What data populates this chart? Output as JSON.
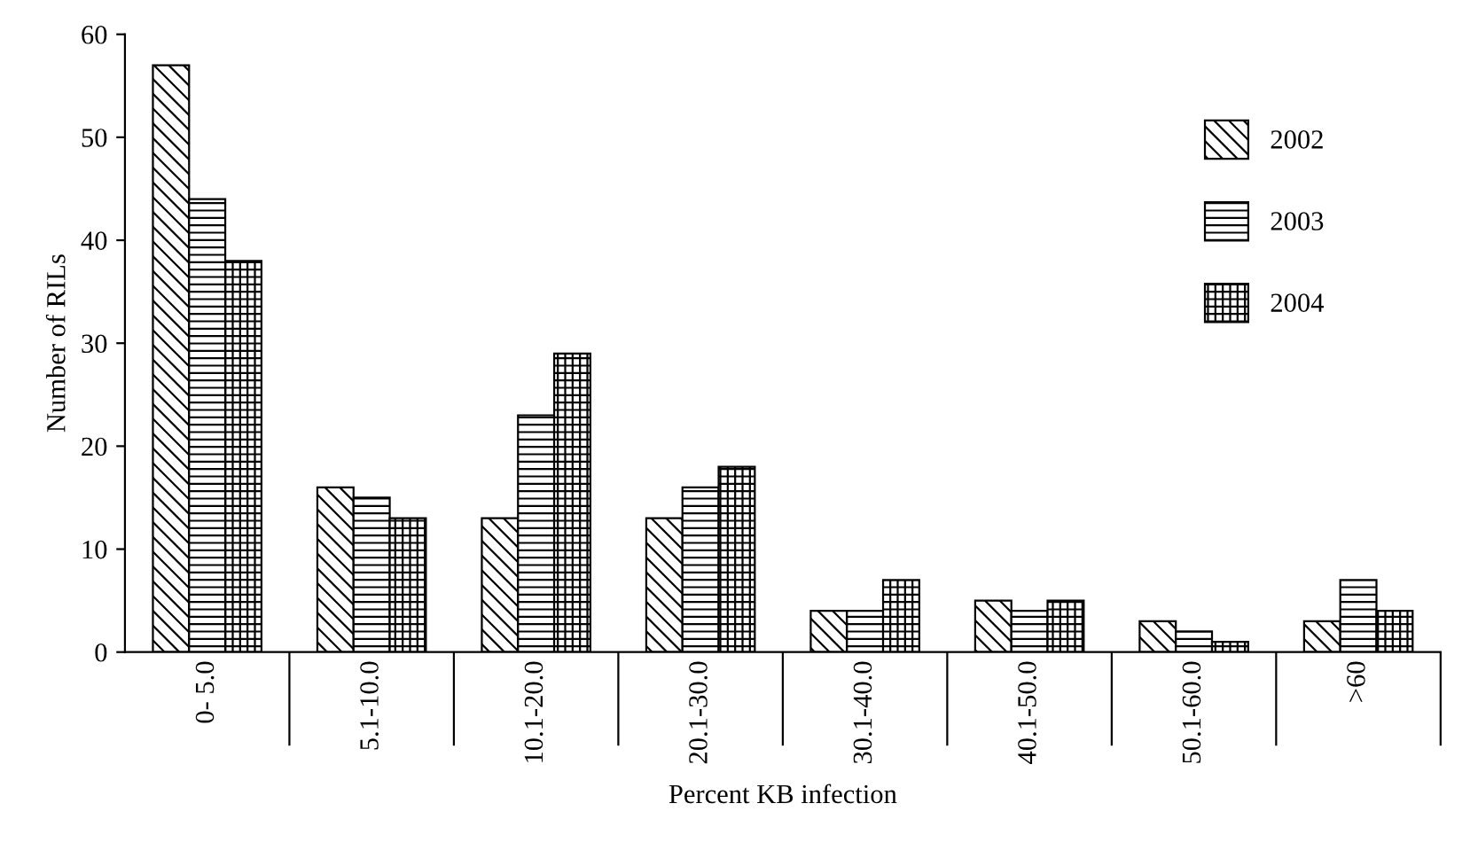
{
  "chart_data": {
    "type": "bar",
    "xlabel": "Percent KB infection",
    "ylabel": "Number of RILs",
    "categories": [
      "0- 5.0",
      "5.1-10.0",
      "10.1-20.0",
      "20.1-30.0",
      "30.1-40.0",
      "40.1-50.0",
      "50.1-60.0",
      ">60"
    ],
    "series": [
      {
        "name": "2002",
        "color": "#000000",
        "values": [
          57,
          16,
          13,
          13,
          4,
          5,
          3,
          3
        ]
      },
      {
        "name": "2003",
        "color": "#000000",
        "values": [
          44,
          15,
          23,
          16,
          4,
          4,
          2,
          7
        ]
      },
      {
        "name": "2004",
        "color": "#000000",
        "values": [
          38,
          13,
          29,
          18,
          7,
          5,
          1,
          4
        ]
      }
    ],
    "ylim": [
      0,
      60
    ],
    "yticks": [
      0,
      10,
      20,
      30,
      40,
      50,
      60
    ],
    "grid": false,
    "legend": "top right"
  }
}
